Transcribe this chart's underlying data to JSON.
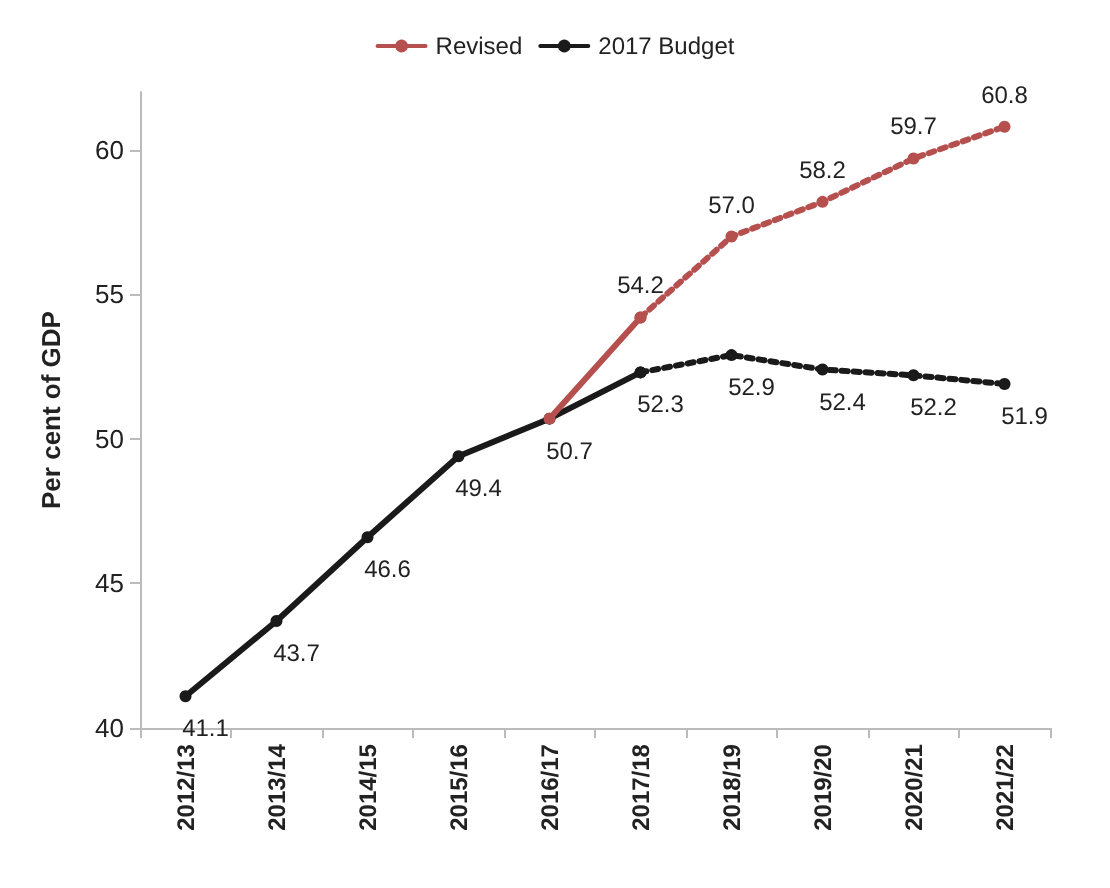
{
  "chart_data": {
    "type": "line",
    "ylabel": "Per cent of GDP",
    "categories": [
      "2012/13",
      "2013/14",
      "2014/15",
      "2015/16",
      "2016/17",
      "2017/18",
      "2018/19",
      "2019/20",
      "2020/21",
      "2021/22"
    ],
    "series": [
      {
        "name": "Revised",
        "color": "#b5504f",
        "line_style": "solid",
        "values": [
          null,
          null,
          null,
          null,
          50.7,
          54.2,
          null,
          null,
          null,
          null
        ],
        "value_labels": [
          null,
          null,
          null,
          null,
          null,
          null,
          null,
          null,
          null,
          null
        ]
      },
      {
        "color": "#b5504f",
        "line_style": "dotted",
        "values": [
          null,
          null,
          null,
          null,
          null,
          54.2,
          57.0,
          58.2,
          59.7,
          60.8
        ],
        "value_labels": [
          null,
          null,
          null,
          null,
          null,
          "54.2",
          "57.0",
          "58.2",
          "59.7",
          "60.8"
        ]
      },
      {
        "name": "2017 Budget",
        "color": "#1a1a1a",
        "line_style": "solid",
        "values": [
          41.1,
          43.7,
          46.6,
          49.4,
          50.7,
          52.3,
          null,
          null,
          null,
          null
        ],
        "value_labels": [
          "41.1",
          "43.7",
          "46.6",
          "49.4",
          "50.7",
          "52.3",
          null,
          null,
          null,
          null
        ]
      },
      {
        "color": "#1a1a1a",
        "line_style": "dotted",
        "values": [
          null,
          null,
          null,
          null,
          null,
          52.3,
          52.9,
          52.4,
          52.2,
          51.9
        ],
        "value_labels": [
          null,
          null,
          null,
          null,
          null,
          null,
          "52.9",
          "52.4",
          "52.2",
          "51.9"
        ]
      }
    ],
    "ylim": [
      40,
      62
    ],
    "yticks": [
      40,
      45,
      50,
      55,
      60
    ],
    "grid": false,
    "legend": "top",
    "marker": "circle"
  }
}
